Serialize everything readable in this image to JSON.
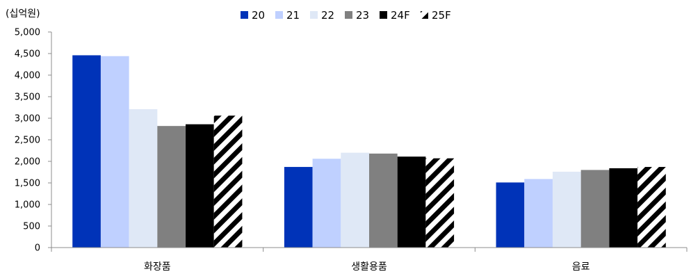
{
  "chart_data": {
    "type": "bar",
    "unit_label": "(십억원)",
    "categories": [
      "화장품",
      "생활용품",
      "음료"
    ],
    "series": [
      {
        "name": "20",
        "values": [
          4460,
          1870,
          1510
        ],
        "color": "#0033b8",
        "pattern": "solid"
      },
      {
        "name": "21",
        "values": [
          4440,
          2060,
          1590
        ],
        "color": "#bfd0ff",
        "pattern": "solid"
      },
      {
        "name": "22",
        "values": [
          3210,
          2200,
          1760
        ],
        "color": "#dfe8f6",
        "pattern": "solid"
      },
      {
        "name": "23",
        "values": [
          2820,
          2180,
          1800
        ],
        "color": "#808080",
        "pattern": "solid"
      },
      {
        "name": "24F",
        "values": [
          2860,
          2110,
          1840
        ],
        "color": "#000000",
        "pattern": "solid"
      },
      {
        "name": "25F",
        "values": [
          3060,
          2070,
          1870
        ],
        "color": "#000000",
        "pattern": "diagonal-stripes"
      }
    ],
    "yticks": [
      "0",
      "500",
      "1,000",
      "1,500",
      "2,000",
      "2,500",
      "3,000",
      "3,500",
      "4,000",
      "4,500",
      "5,000"
    ],
    "ylim": [
      0,
      5000
    ],
    "legend_position": "top",
    "grid": false
  }
}
